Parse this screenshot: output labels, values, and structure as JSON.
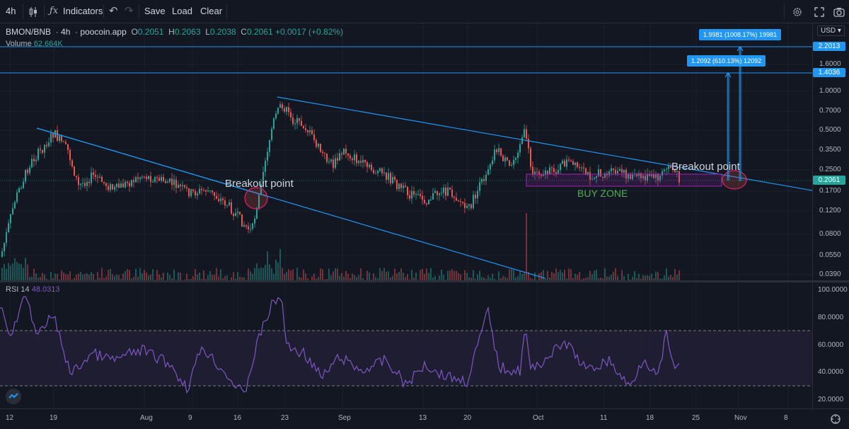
{
  "toolbar": {
    "interval": "4h",
    "indicators_label": "Indicators",
    "save_label": "Save",
    "load_label": "Load",
    "clear_label": "Clear"
  },
  "legend": {
    "symbol": "BMON/BNB",
    "interval": "4h",
    "source": "poocoin.app",
    "o_label": "O",
    "o": "0.2051",
    "h_label": "H",
    "h": "0.2063",
    "l_label": "L",
    "l": "0.2038",
    "c_label": "C",
    "c": "0.2061",
    "change": "+0.0017 (+0.82%)",
    "volume_label": "Volume",
    "volume": "62.664K",
    "rsi_label": "RSI 14",
    "rsi": "48.0313"
  },
  "currency": "USD",
  "price_ticks": [
    "1.6000",
    "1.0000",
    "0.7000",
    "0.5000",
    "0.3500",
    "0.2500",
    "0.1700",
    "0.1200",
    "0.0800",
    "0.0550",
    "0.0390"
  ],
  "price_badges": {
    "top": "2.2013",
    "mid": "1.4036",
    "current": "0.2061"
  },
  "rsi_ticks": [
    "100.0000",
    "80.0000",
    "60.0000",
    "40.0000",
    "20.0000"
  ],
  "x_labels": [
    "12",
    "19",
    "Aug",
    "9",
    "16",
    "23",
    "Sep",
    "13",
    "20",
    "Oct",
    "11",
    "18",
    "25",
    "Nov",
    "8"
  ],
  "annotations": {
    "breakout_left": "Breakout point",
    "breakout_right": "Breakout point",
    "buy_zone": "BUY ZONE",
    "measure_upper": "1.9981 (1008.17%) 19981",
    "measure_lower": "1.2092 (610.13%) 12092"
  },
  "colors": {
    "up": "#26a69a",
    "down": "#ef5350",
    "line": "#2196f3",
    "rsi": "#7e57c2",
    "buyzone": "#9c27b0",
    "bg": "#131722"
  }
}
